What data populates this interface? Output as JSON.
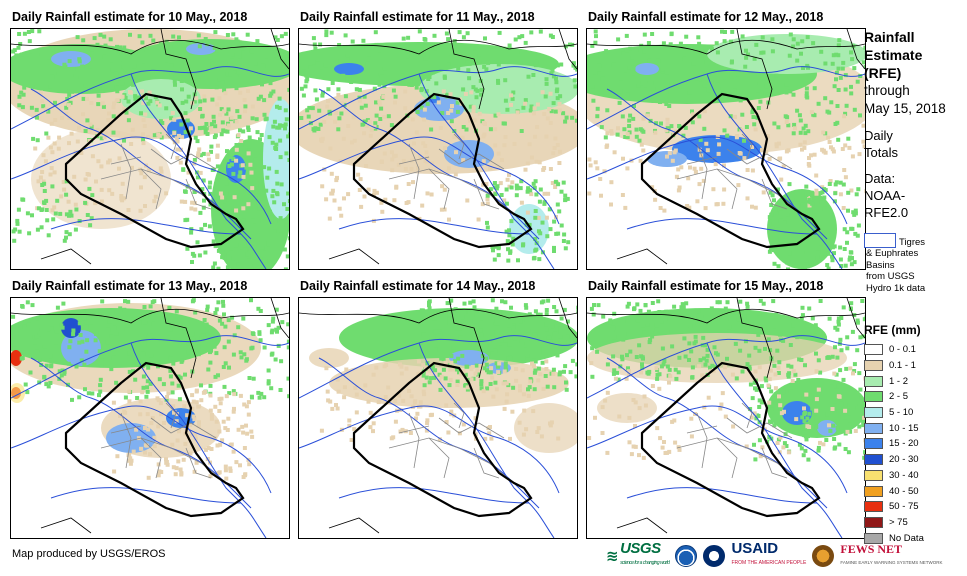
{
  "panels": [
    {
      "title": "Daily Rainfall estimate for 10 May., 2018"
    },
    {
      "title": "Daily Rainfall estimate for 11 May., 2018"
    },
    {
      "title": "Daily Rainfall estimate for 12 May., 2018"
    },
    {
      "title": "Daily Rainfall estimate for 13 May., 2018"
    },
    {
      "title": "Daily Rainfall estimate for 14 May., 2018"
    },
    {
      "title": "Daily Rainfall estimate for 15 May., 2018"
    }
  ],
  "side": {
    "title_l1": "Rainfall",
    "title_l2": "Estimate",
    "title_l3": "(RFE)",
    "sub_l1": "through",
    "sub_l2": "May 15, 2018",
    "daily_l1": "Daily",
    "daily_l2": "Totals",
    "data_l1": "Data:",
    "data_l2": "NOAA-",
    "data_l3": "RFE2.0"
  },
  "basin_key": {
    "l1": "Tigres",
    "l2": "& Euphrates",
    "l3": "Basins",
    "l4": "from USGS",
    "l5": "Hydro 1k data"
  },
  "legend": {
    "title": "RFE (mm)",
    "items": [
      {
        "label": "0 - 0.1",
        "color": "#ffffff"
      },
      {
        "label": "0.1 - 1",
        "color": "#e6d2b0"
      },
      {
        "label": "1 - 2",
        "color": "#a8ecb0"
      },
      {
        "label": "2 - 5",
        "color": "#6fdc6f"
      },
      {
        "label": "5 - 10",
        "color": "#b4ecec"
      },
      {
        "label": "10 - 15",
        "color": "#80b0f0"
      },
      {
        "label": "15 - 20",
        "color": "#3c82ec"
      },
      {
        "label": "20 - 30",
        "color": "#2050d0"
      },
      {
        "label": "30 - 40",
        "color": "#f8e070"
      },
      {
        "label": "40 - 50",
        "color": "#f0a020"
      },
      {
        "label": "50 - 75",
        "color": "#e83010"
      },
      {
        "label": "> 75",
        "color": "#901818"
      },
      {
        "label": "No Data",
        "color": "#a8a8a8"
      }
    ]
  },
  "credit": "Map produced by USGS/EROS",
  "logos": {
    "usgs": "USGS",
    "usgs_tagline": "science for a changing world",
    "usaid": "USAID",
    "usaid_tagline": "FROM THE AMERICAN PEOPLE",
    "fews": "FEWS NET",
    "fews_tagline": "FAMINE EARLY WARNING SYSTEMS NETWORK"
  }
}
